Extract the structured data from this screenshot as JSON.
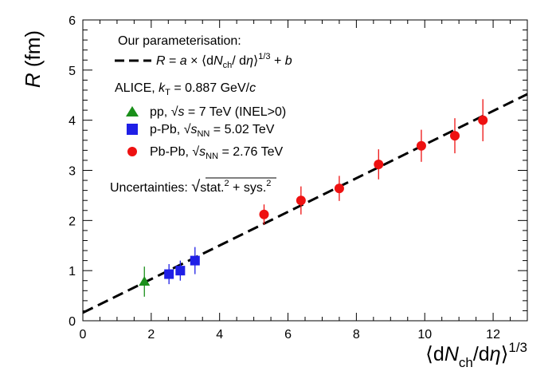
{
  "chart_data": {
    "type": "scatter",
    "xlabel": {
      "open": "⟨d",
      "N": "N",
      "ch": "ch",
      "mid": "/d",
      "eta": "η",
      "close": "⟩",
      "exp": "1/3"
    },
    "ylabel": {
      "R": "R",
      "unit": " (fm)"
    },
    "xlim": [
      0,
      13
    ],
    "ylim": [
      0,
      6
    ],
    "xticks": [
      0,
      2,
      4,
      6,
      8,
      10,
      12
    ],
    "yticks": [
      0,
      1,
      2,
      3,
      4,
      5,
      6
    ],
    "xtick_labels": [
      "0",
      "2",
      "4",
      "6",
      "8",
      "10",
      "12"
    ],
    "ytick_labels": [
      "0",
      "1",
      "2",
      "3",
      "4",
      "5",
      "6"
    ],
    "grid": false,
    "legend_position": "top-left",
    "fit": {
      "name": "Our parameterisation:",
      "style": "dashed",
      "color": "#000000",
      "x": [
        0,
        13
      ],
      "y": [
        0.16,
        4.52
      ],
      "formula": {
        "R": "R",
        "eq": " = ",
        "a": "a",
        "times": " × ⟨d",
        "N": "N",
        "ch": "ch",
        "mid": "/ d",
        "eta": "η",
        "close": "⟩",
        "exp": "1/3",
        "plus": " + ",
        "b": "b"
      }
    },
    "legend_header": {
      "pre": "ALICE, ",
      "k": "k",
      "T": "T",
      "post": " = 0.887 GeV/",
      "c": "c"
    },
    "series": [
      {
        "name": {
          "pre": "pp, ",
          "sqrt": "√",
          "s": "s",
          "sub": "",
          "post": " = 7 TeV (INEL>0)"
        },
        "marker": "triangle",
        "color": "#1a8f1a",
        "x": [
          1.8
        ],
        "y": [
          0.78
        ],
        "err": [
          0.3
        ]
      },
      {
        "name": {
          "pre": "p-Pb, ",
          "sqrt": "√",
          "s": "s",
          "sub": "NN",
          "post": " = 5.02 TeV"
        },
        "marker": "square",
        "color": "#1f1fe6",
        "x": [
          2.52,
          2.85,
          3.28
        ],
        "y": [
          0.93,
          1.0,
          1.2
        ],
        "err": [
          0.2,
          0.2,
          0.27
        ]
      },
      {
        "name": {
          "pre": "Pb-Pb, ",
          "sqrt": "√",
          "s": "s",
          "sub": "NN",
          "post": " = 2.76 TeV"
        },
        "marker": "circle",
        "color": "#ee1111",
        "x": [
          5.3,
          6.38,
          7.5,
          8.65,
          9.9,
          10.88,
          11.7
        ],
        "y": [
          2.12,
          2.4,
          2.64,
          3.12,
          3.49,
          3.69,
          4.0
        ],
        "err": [
          0.2,
          0.28,
          0.25,
          0.3,
          0.32,
          0.35,
          0.42
        ]
      }
    ],
    "uncertainties": {
      "label": "Uncertainties: ",
      "body": "stat.",
      "sq1": "2",
      "plus": " + sys.",
      "sq2": "2"
    }
  }
}
